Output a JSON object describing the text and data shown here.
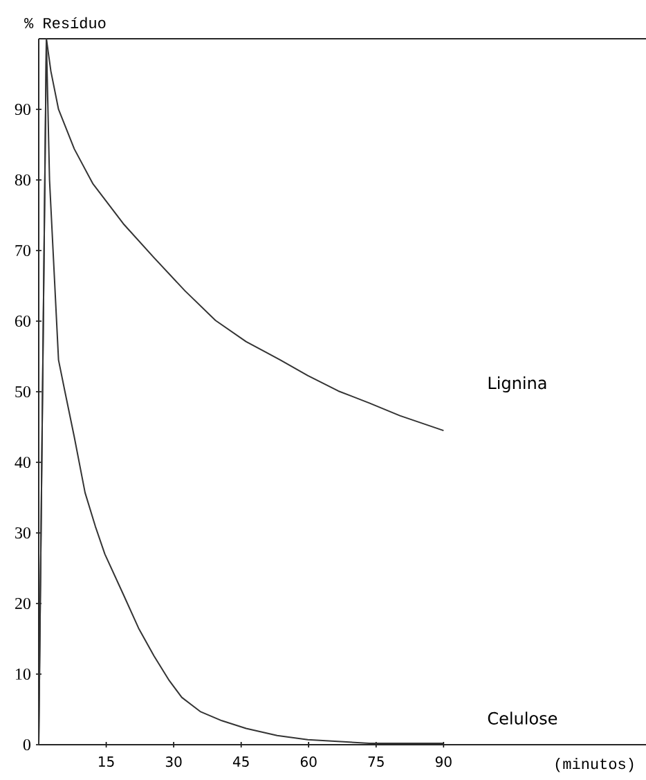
{
  "chart_data": {
    "type": "line",
    "ylabel": "% Resíduo",
    "xlabel": "(minutos)",
    "xlim": [
      0,
      135
    ],
    "ylim": [
      0,
      100
    ],
    "xticks": [
      15,
      30,
      45,
      60,
      75,
      90
    ],
    "yticks": [
      0,
      10,
      20,
      30,
      40,
      50,
      60,
      70,
      80,
      90
    ],
    "ref_lines": [
      {
        "axis": "y",
        "value": 100,
        "label": null
      }
    ],
    "series": [
      {
        "name": "Lignina",
        "color": "#333333",
        "x": [
          0,
          1.7,
          2.7,
          4.4,
          7.9,
          12,
          18.8,
          25.6,
          32.5,
          39.3,
          46.1,
          53.7,
          59.8,
          66.6,
          73.5,
          80.3,
          90
        ],
        "values": [
          0,
          100,
          95.4,
          90,
          84.4,
          79.5,
          73.8,
          69,
          64.3,
          60.1,
          57.1,
          54.5,
          52.3,
          50.1,
          48.4,
          46.6,
          44.5
        ]
      },
      {
        "name": "Celulose",
        "color": "#333333",
        "x": [
          0,
          1.7,
          2.4,
          4.4,
          5.8,
          7.9,
          10.3,
          12.6,
          14.7,
          18.8,
          22.2,
          25.6,
          29,
          31.8,
          35.9,
          40.7,
          46.1,
          53,
          59.8,
          73.5,
          90
        ],
        "values": [
          0,
          100,
          80,
          54.5,
          50.1,
          43.6,
          35.7,
          30.9,
          27,
          21.3,
          16.5,
          12.6,
          9.1,
          6.7,
          4.7,
          3.4,
          2.3,
          1.3,
          0.7,
          0.2,
          0.2
        ]
      }
    ]
  }
}
